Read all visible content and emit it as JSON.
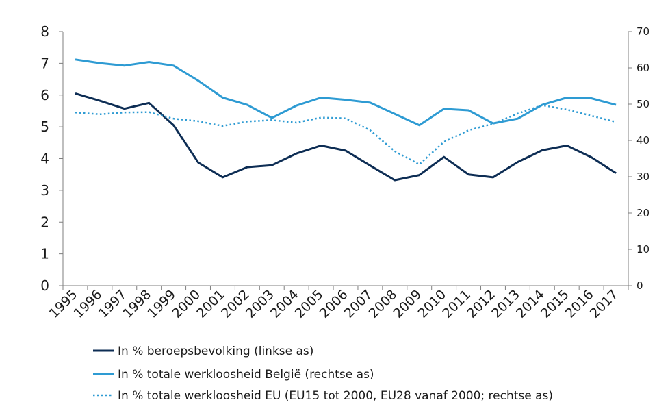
{
  "chart_data": {
    "type": "line",
    "title": "",
    "categories": [
      "1995",
      "1996",
      "1997",
      "1998",
      "1999",
      "2000",
      "2001",
      "2002",
      "2003",
      "2004",
      "2005",
      "2006",
      "2007",
      "2008",
      "2009",
      "2010",
      "2011",
      "2012",
      "2013",
      "2014",
      "2015",
      "2016",
      "2017"
    ],
    "y_left": {
      "ylim": [
        0,
        8
      ],
      "ticks": [
        "0",
        "1",
        "2",
        "3",
        "4",
        "5",
        "6",
        "7",
        "8"
      ]
    },
    "y_right": {
      "ylim": [
        0,
        70
      ],
      "ticks": [
        "0",
        "10",
        "20",
        "30",
        "40",
        "50",
        "60",
        "70"
      ]
    },
    "grid": false,
    "legend_position": "bottom-left",
    "series": [
      {
        "name": "In % beroepsbevolking (linkse as)",
        "axis": "left",
        "color": "#0d2d54",
        "style": "solid",
        "values": [
          6.05,
          5.82,
          5.57,
          5.75,
          5.05,
          3.88,
          3.41,
          3.73,
          3.79,
          4.16,
          4.41,
          4.25,
          3.78,
          3.32,
          3.48,
          4.05,
          3.5,
          3.41,
          3.89,
          4.26,
          4.41,
          4.04,
          3.54
        ]
      },
      {
        "name": "In % totale werkloosheid België (rechtse as)",
        "axis": "right",
        "color": "#2e9bd3",
        "style": "solid",
        "values": [
          62.3,
          61.3,
          60.6,
          61.6,
          60.6,
          56.5,
          51.8,
          49.8,
          46.2,
          49.6,
          51.8,
          51.2,
          50.4,
          47.3,
          44.2,
          48.7,
          48.3,
          44.7,
          46.0,
          49.8,
          51.8,
          51.6,
          49.8
        ]
      },
      {
        "name": "In % totale werkloosheid EU (EU15 tot 2000, EU28 vanaf 2000; rechtse as)",
        "axis": "right",
        "color": "#2e9bd3",
        "style": "dotted",
        "values": [
          47.7,
          47.2,
          47.7,
          47.8,
          46.0,
          45.3,
          44.0,
          45.2,
          45.6,
          44.9,
          46.3,
          46.1,
          42.8,
          37.0,
          33.4,
          39.6,
          42.8,
          44.6,
          47.4,
          49.7,
          48.5,
          46.8,
          45.1
        ]
      }
    ]
  }
}
